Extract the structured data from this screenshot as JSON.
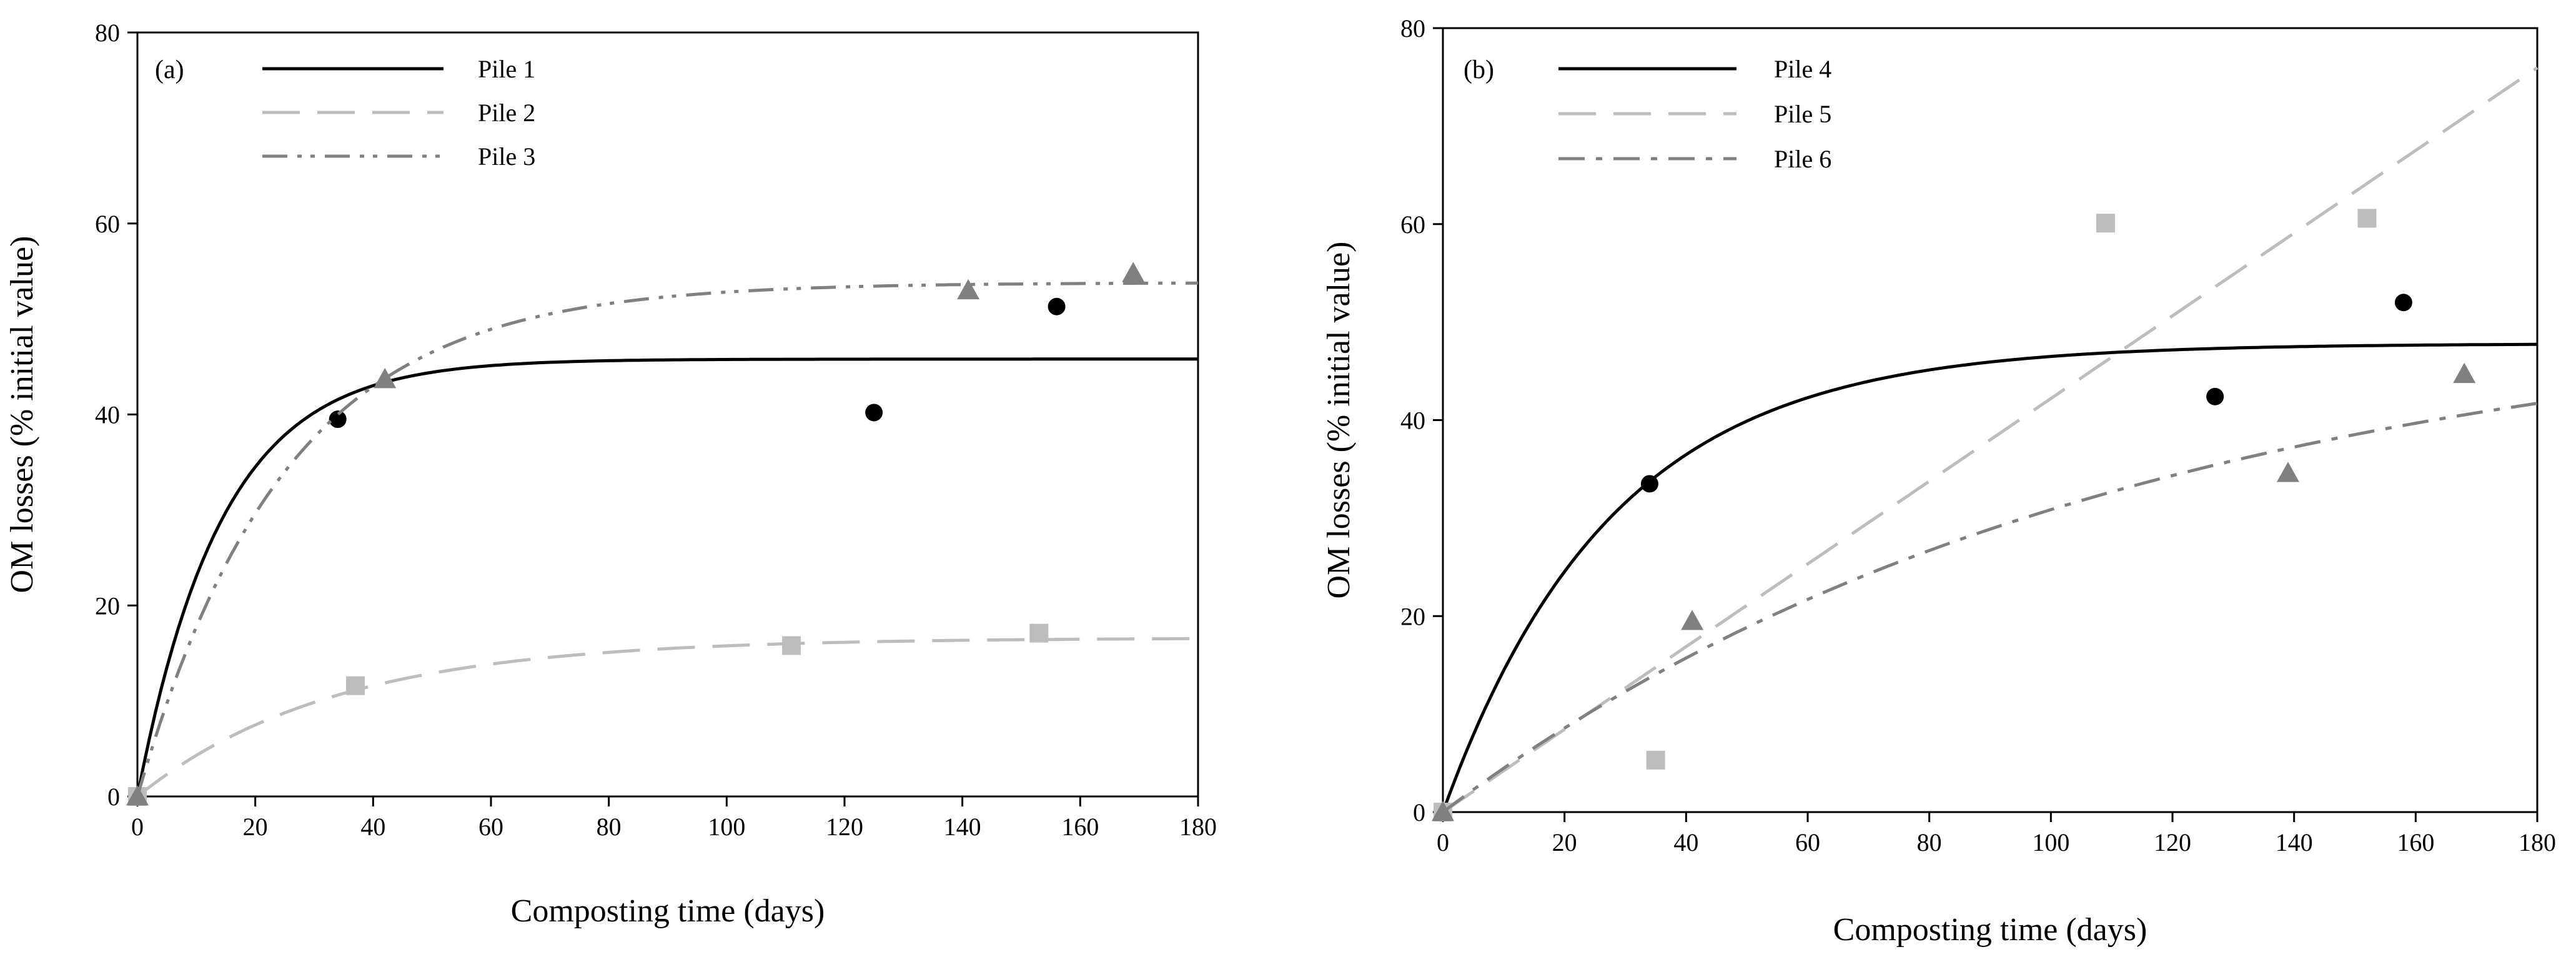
{
  "chart_data": [
    {
      "type": "line",
      "panel_label": "(a)",
      "xlabel": "Composting time (days)",
      "ylabel": "OM losses (% initial value)",
      "xlim": [
        0,
        180
      ],
      "ylim": [
        0,
        80
      ],
      "xticks": [
        0,
        20,
        40,
        60,
        80,
        100,
        120,
        140,
        160,
        180
      ],
      "yticks": [
        0,
        20,
        40,
        60,
        80
      ],
      "legend_position": "top-left",
      "series": [
        {
          "name": "Pile 1",
          "color": "#000000",
          "line_style": "solid",
          "marker": "circle",
          "fit": {
            "model": "first-order",
            "a": 45.8,
            "k": 0.07
          },
          "points": [
            [
              0,
              0
            ],
            [
              34,
              39.5
            ],
            [
              125,
              40.2
            ],
            [
              156,
              51.3
            ]
          ]
        },
        {
          "name": "Pile 2",
          "color": "#bdbdbd",
          "line_style": "dashed",
          "marker": "square",
          "fit": {
            "model": "first-order",
            "a": 16.6,
            "k": 0.03
          },
          "points": [
            [
              0,
              0
            ],
            [
              37,
              11.6
            ],
            [
              111,
              15.8
            ],
            [
              153,
              17.1
            ]
          ]
        },
        {
          "name": "Pile 3",
          "color": "#808080",
          "line_style": "dash-dot-dot",
          "marker": "triangle",
          "fit": {
            "model": "first-order",
            "a": 53.8,
            "k": 0.04
          },
          "points": [
            [
              0,
              0
            ],
            [
              42,
              43.7
            ],
            [
              141,
              53.0
            ],
            [
              169,
              54.8
            ]
          ]
        }
      ]
    },
    {
      "type": "line",
      "panel_label": "(b)",
      "xlabel": "Composting time (days)",
      "ylabel": "OM losses (% initial value)",
      "xlim": [
        0,
        180
      ],
      "ylim": [
        0,
        80
      ],
      "xticks": [
        0,
        20,
        40,
        60,
        80,
        100,
        120,
        140,
        160,
        180
      ],
      "yticks": [
        0,
        20,
        40,
        60,
        80
      ],
      "legend_position": "top-left",
      "series": [
        {
          "name": "Pile 4",
          "color": "#000000",
          "line_style": "solid",
          "marker": "circle",
          "fit": {
            "model": "first-order",
            "a": 47.8,
            "k": 0.036
          },
          "points": [
            [
              0,
              0
            ],
            [
              34,
              33.5
            ],
            [
              127,
              42.4
            ],
            [
              158,
              52.0
            ]
          ]
        },
        {
          "name": "Pile 5",
          "color": "#bdbdbd",
          "line_style": "dashed",
          "marker": "square",
          "fit": {
            "model": "linear",
            "slope": 0.422
          },
          "points": [
            [
              0,
              0
            ],
            [
              35,
              5.3
            ],
            [
              109,
              60.1
            ],
            [
              152,
              60.6
            ]
          ]
        },
        {
          "name": "Pile 6",
          "color": "#808080",
          "line_style": "dash-dot",
          "marker": "triangle",
          "fit": {
            "model": "first-order",
            "a": 52.0,
            "k": 0.009
          },
          "points": [
            [
              0,
              0
            ],
            [
              41,
              19.5
            ],
            [
              139,
              34.6
            ],
            [
              168,
              44.7
            ]
          ]
        }
      ]
    }
  ]
}
